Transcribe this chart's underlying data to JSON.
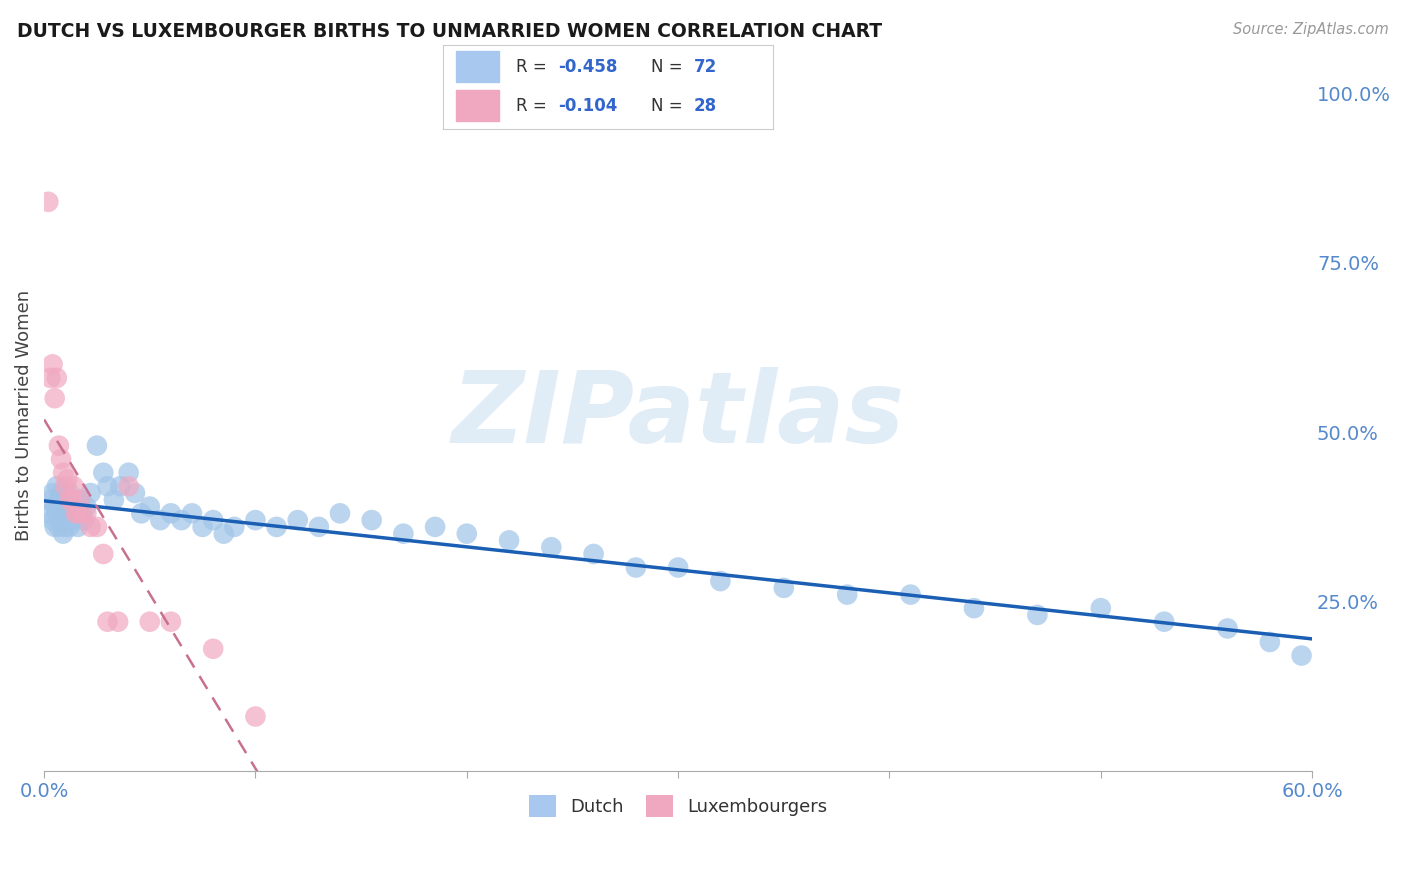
{
  "title": "DUTCH VS LUXEMBOURGER BIRTHS TO UNMARRIED WOMEN CORRELATION CHART",
  "source": "Source: ZipAtlas.com",
  "ylabel": "Births to Unmarried Women",
  "dutch_color": "#a0c4e8",
  "dutch_line_color": "#1a5fb4",
  "luxembourger_color": "#f0a8c0",
  "luxembourger_line_color": "#c87090",
  "watermark_text": "ZIPatlas",
  "xlim": [
    0.0,
    0.6
  ],
  "ylim": [
    0.0,
    1.05
  ],
  "dutch_x": [
    0.002,
    0.003,
    0.004,
    0.004,
    0.005,
    0.005,
    0.006,
    0.006,
    0.007,
    0.007,
    0.008,
    0.008,
    0.009,
    0.009,
    0.01,
    0.01,
    0.011,
    0.011,
    0.012,
    0.012,
    0.013,
    0.013,
    0.014,
    0.015,
    0.016,
    0.017,
    0.018,
    0.019,
    0.02,
    0.022,
    0.025,
    0.028,
    0.03,
    0.033,
    0.036,
    0.04,
    0.043,
    0.046,
    0.05,
    0.055,
    0.06,
    0.065,
    0.07,
    0.075,
    0.08,
    0.085,
    0.09,
    0.1,
    0.11,
    0.12,
    0.13,
    0.14,
    0.155,
    0.17,
    0.185,
    0.2,
    0.22,
    0.24,
    0.26,
    0.28,
    0.3,
    0.32,
    0.35,
    0.38,
    0.41,
    0.44,
    0.47,
    0.5,
    0.53,
    0.56,
    0.58,
    0.595
  ],
  "dutch_y": [
    0.38,
    0.4,
    0.37,
    0.41,
    0.36,
    0.39,
    0.38,
    0.42,
    0.36,
    0.4,
    0.37,
    0.41,
    0.35,
    0.38,
    0.36,
    0.4,
    0.37,
    0.38,
    0.36,
    0.41,
    0.38,
    0.39,
    0.37,
    0.38,
    0.36,
    0.4,
    0.38,
    0.37,
    0.39,
    0.41,
    0.48,
    0.44,
    0.42,
    0.4,
    0.42,
    0.44,
    0.41,
    0.38,
    0.39,
    0.37,
    0.38,
    0.37,
    0.38,
    0.36,
    0.37,
    0.35,
    0.36,
    0.37,
    0.36,
    0.37,
    0.36,
    0.38,
    0.37,
    0.35,
    0.36,
    0.35,
    0.34,
    0.33,
    0.32,
    0.3,
    0.3,
    0.28,
    0.27,
    0.26,
    0.26,
    0.24,
    0.23,
    0.24,
    0.22,
    0.21,
    0.19,
    0.17
  ],
  "lux_x": [
    0.002,
    0.003,
    0.004,
    0.005,
    0.006,
    0.007,
    0.008,
    0.009,
    0.01,
    0.011,
    0.012,
    0.013,
    0.014,
    0.015,
    0.016,
    0.017,
    0.018,
    0.02,
    0.022,
    0.025,
    0.028,
    0.03,
    0.035,
    0.04,
    0.05,
    0.06,
    0.08,
    0.1
  ],
  "lux_y": [
    0.84,
    0.58,
    0.6,
    0.55,
    0.58,
    0.48,
    0.46,
    0.44,
    0.42,
    0.43,
    0.4,
    0.4,
    0.42,
    0.38,
    0.38,
    0.4,
    0.38,
    0.38,
    0.36,
    0.36,
    0.32,
    0.22,
    0.22,
    0.42,
    0.22,
    0.22,
    0.18,
    0.08
  ],
  "legend_box": {
    "dutch_r": "R = -0.458",
    "dutch_n": "N = 72",
    "lux_r": "R = -0.104",
    "lux_n": "N = 28"
  }
}
